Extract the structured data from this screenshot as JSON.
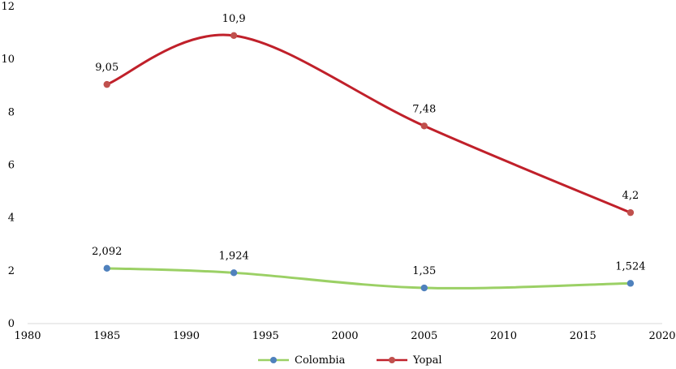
{
  "chart_data": {
    "type": "line",
    "title": "",
    "xlabel": "",
    "ylabel": "",
    "xlim": [
      1980,
      2020
    ],
    "ylim": [
      0,
      12
    ],
    "x_ticks": [
      "1980",
      "1985",
      "1990",
      "1995",
      "2000",
      "2005",
      "2010",
      "2015",
      "2020"
    ],
    "y_ticks": [
      "0",
      "2",
      "4",
      "6",
      "8",
      "10",
      "12"
    ],
    "grid": false,
    "legend": "bottom",
    "series": [
      {
        "name": "Colombia",
        "color": "#9bd065",
        "marker_color": "#4f81bd",
        "x": [
          1985,
          1993,
          2005,
          2018
        ],
        "values": [
          2.092,
          1.924,
          1.35,
          1.524
        ],
        "labels": [
          "2,092",
          "1,924",
          "1,35",
          "1,524"
        ]
      },
      {
        "name": "Yopal",
        "color": "#c0202a",
        "marker_color": "#c0504d",
        "x": [
          1985,
          1993,
          2005,
          2018
        ],
        "values": [
          9.05,
          10.9,
          7.48,
          4.2
        ],
        "labels": [
          "9,05",
          "10,9",
          "7,48",
          "4,2"
        ]
      }
    ]
  }
}
